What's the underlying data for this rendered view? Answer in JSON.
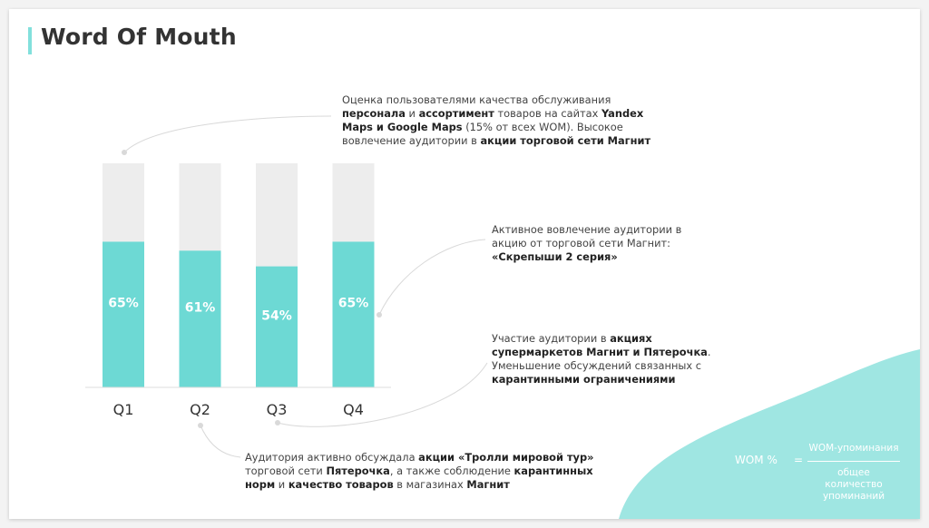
{
  "title": "Word Of Mouth",
  "colors": {
    "accent": "#6dd9d4",
    "track": "#ededed",
    "title_bar": "#82e0dc",
    "blob": "#9fe6e2"
  },
  "chart_data": {
    "type": "bar",
    "categories": [
      "Q1",
      "Q2",
      "Q3",
      "Q4"
    ],
    "values": [
      65,
      61,
      54,
      65
    ],
    "labels": [
      "65%",
      "61%",
      "54%",
      "65%"
    ],
    "ylim": [
      0,
      100
    ],
    "grid": false
  },
  "annotations": {
    "a1": {
      "l1": "Оценка пользователями качества обслуживания",
      "l2_b1": "персонала",
      "l2_t1": " и ",
      "l2_b2": "ассортимент",
      "l2_t2": " товаров на сайтах ",
      "l2_b3": "Yandex",
      "l3_b1": "Maps и Google Maps",
      "l3_t1": " (15% от всех WOM). Высокое",
      "l4_t1": "вовлечение аудитории в ",
      "l4_b1": "акции торговой сети Магнит"
    },
    "a2": {
      "l1": "Активное вовлечение аудитории в",
      "l2": "акцию от торговой сети Магнит:",
      "l3_b": "«Скрепыши 2 серия»"
    },
    "a3": {
      "l1_t": "Участие аудитории в ",
      "l1_b": "акциях",
      "l2_b": "супермаркетов Магнит и Пятерочка",
      "l2_t": ".",
      "l3": "Уменьшение обсуждений связанных с",
      "l4_b": "карантинными ограничениями"
    },
    "a4": {
      "l1_t": "Аудитория активно обсуждала ",
      "l1_b": "акции «Тролли мировой тур»",
      "l2_t1": "торговой сети ",
      "l2_b1": "Пятерочка",
      "l2_t2": ", а также соблюдение ",
      "l2_b2": "карантинных",
      "l3_b1": "норм",
      "l3_t1": " и ",
      "l3_b2": "качество товаров",
      "l3_t2": " в магазинах ",
      "l3_b3": "Магнит"
    }
  },
  "formula": {
    "lhs": "WOM %",
    "eq": "=",
    "numerator": "WOM-упоминания",
    "den_l1": "общее",
    "den_l2": "количество",
    "den_l3": "упоминаний"
  }
}
